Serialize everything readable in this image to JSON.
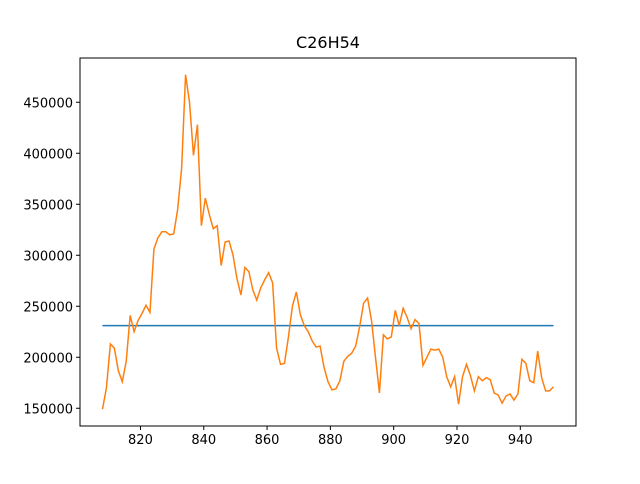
{
  "chart_data": {
    "type": "line",
    "title": "C26H54",
    "xlim": [
      800.9,
      957.6
    ],
    "ylim": [
      132600,
      493400
    ],
    "xticks": [
      820,
      840,
      860,
      880,
      900,
      920,
      940
    ],
    "yticks": [
      150000,
      200000,
      250000,
      300000,
      350000,
      400000,
      450000
    ],
    "series": [
      {
        "color": "#1f77b4",
        "x": [
          808,
          950.5
        ],
        "values": [
          231000,
          231000
        ]
      },
      {
        "color": "#ff7f0e",
        "x": [
          808,
          809.25,
          810.5,
          811.75,
          813,
          814.25,
          815.5,
          816.75,
          818,
          819.25,
          820.5,
          821.75,
          823,
          824.25,
          825.5,
          826.75,
          828,
          829.25,
          830.5,
          831.75,
          833,
          834.25,
          835.5,
          836.75,
          838,
          839.25,
          840.5,
          841.75,
          843,
          844.25,
          845.5,
          846.75,
          848,
          849.25,
          850.5,
          851.75,
          853,
          854.25,
          855.5,
          856.75,
          858,
          859.25,
          860.5,
          861.75,
          863,
          864.25,
          865.5,
          866.75,
          868,
          869.25,
          870.5,
          871.75,
          873,
          874.25,
          875.5,
          876.75,
          878,
          879.25,
          880.5,
          881.75,
          883,
          884.25,
          885.5,
          886.75,
          888,
          889.25,
          890.5,
          891.75,
          893,
          894.25,
          895.5,
          896.75,
          898,
          899.25,
          900.5,
          901.75,
          903,
          904.25,
          905.5,
          906.75,
          908,
          909.25,
          910.5,
          911.75,
          913,
          914.25,
          915.5,
          916.75,
          918,
          919.25,
          920.5,
          921.75,
          923,
          924.25,
          925.5,
          926.75,
          928,
          929.25,
          930.5,
          931.75,
          933,
          934.25,
          935.5,
          936.75,
          938,
          939.25,
          940.5,
          941.75,
          943,
          944.25,
          945.5,
          946.75,
          948,
          949.25,
          950.5
        ],
        "values": [
          149000,
          170000,
          213000,
          209000,
          187000,
          176000,
          196000,
          241000,
          225000,
          236000,
          243000,
          251000,
          244000,
          306000,
          317000,
          323000,
          323000,
          320000,
          321000,
          345000,
          385000,
          477000,
          450000,
          398000,
          428000,
          329000,
          356000,
          340000,
          326000,
          329000,
          290000,
          313000,
          314000,
          300000,
          277000,
          261000,
          288000,
          284000,
          266000,
          256000,
          268000,
          276000,
          283000,
          273000,
          209000,
          193000,
          194000,
          220000,
          250000,
          264000,
          242000,
          231000,
          225000,
          216000,
          210000,
          211000,
          190000,
          176000,
          168000,
          169000,
          177000,
          196000,
          201000,
          204000,
          211000,
          230000,
          253000,
          258000,
          236000,
          200000,
          165000,
          222000,
          218000,
          220000,
          246000,
          231000,
          248000,
          239000,
          228000,
          237000,
          233000,
          192000,
          200000,
          208000,
          207000,
          208000,
          200000,
          181000,
          171000,
          181000,
          154000,
          181000,
          193000,
          182000,
          167000,
          181000,
          177000,
          180000,
          178000,
          165000,
          163000,
          155000,
          162000,
          164000,
          158000,
          164000,
          198000,
          194000,
          177000,
          175000,
          206000,
          180000,
          167000,
          167000,
          171000
        ]
      }
    ]
  }
}
